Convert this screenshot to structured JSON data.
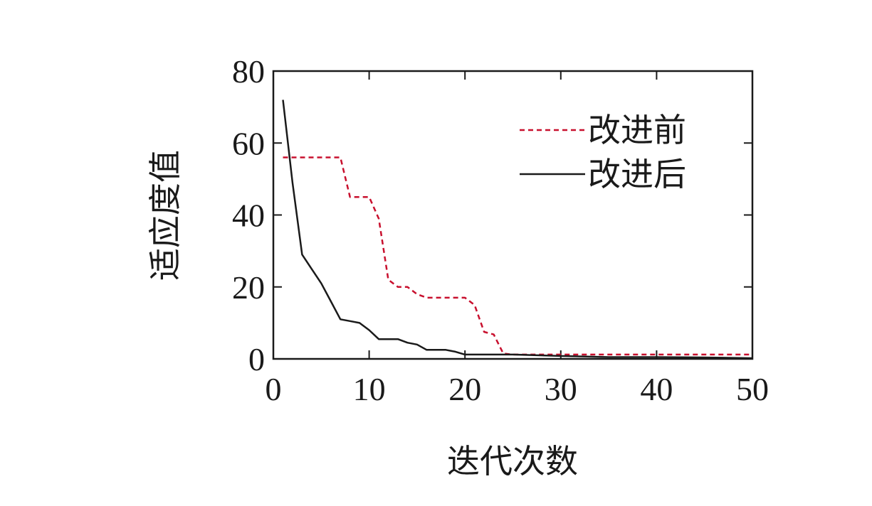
{
  "chart_data": {
    "type": "line",
    "xlabel": "迭代次数",
    "ylabel": "适应度值",
    "xlim": [
      0,
      50
    ],
    "ylim": [
      0,
      80
    ],
    "xticks": [
      0,
      10,
      20,
      30,
      40,
      50
    ],
    "yticks": [
      0,
      20,
      40,
      60,
      80
    ],
    "grid": false,
    "legend_position": "top-right",
    "series": [
      {
        "name": "改进前",
        "color": "#c8102e",
        "style": "dashed",
        "x": [
          1,
          7,
          8,
          10,
          11,
          12,
          13,
          14,
          15,
          16,
          17,
          18,
          19,
          20,
          21,
          22,
          23,
          24,
          25,
          30,
          35,
          40,
          45,
          50
        ],
        "y": [
          56,
          56,
          45,
          45,
          39,
          22,
          20,
          20,
          18,
          17,
          17,
          17,
          17,
          17,
          15,
          7.5,
          6.8,
          1.5,
          1.2,
          1.2,
          1.2,
          1.2,
          1.2,
          1.2
        ]
      },
      {
        "name": "改进后",
        "color": "#1a1a1a",
        "style": "solid",
        "x": [
          1,
          2,
          3,
          4,
          5,
          6,
          7,
          8,
          9,
          10,
          11,
          12,
          13,
          14,
          15,
          16,
          17,
          18,
          19,
          20,
          22,
          25,
          30,
          35,
          40,
          45,
          50
        ],
        "y": [
          72,
          49,
          29,
          25,
          21,
          16,
          11,
          10.5,
          10,
          8,
          5.5,
          5.5,
          5.5,
          4.5,
          4,
          2.5,
          2.5,
          2.5,
          2,
          1.2,
          1.2,
          1.2,
          0.8,
          0.5,
          0.5,
          0.4,
          0.2
        ]
      }
    ]
  }
}
